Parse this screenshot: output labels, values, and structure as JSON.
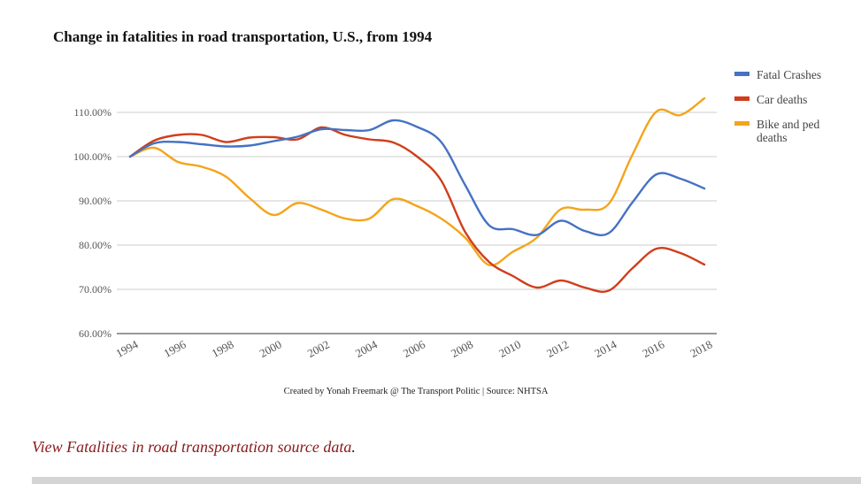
{
  "chart_data": {
    "type": "line",
    "title": "Change in fatalities in road transportation, U.S., from 1994",
    "xlabel": "",
    "ylabel": "",
    "ylim": [
      60,
      115
    ],
    "xlim": [
      1994,
      2018
    ],
    "y_ticks": [
      60,
      70,
      80,
      90,
      100,
      110
    ],
    "y_tick_labels": [
      "60.00%",
      "70.00%",
      "80.00%",
      "90.00%",
      "100.00%",
      "110.00%"
    ],
    "x_tick_labels": [
      "1994",
      "1996",
      "1998",
      "2000",
      "2002",
      "2004",
      "2006",
      "2008",
      "2010",
      "2012",
      "2014",
      "2016",
      "2018"
    ],
    "grid": true,
    "legend_position": "top-right",
    "x": [
      1994,
      1995,
      1996,
      1997,
      1998,
      1999,
      2000,
      2001,
      2002,
      2003,
      2004,
      2005,
      2006,
      2007,
      2008,
      2009,
      2010,
      2011,
      2012,
      2013,
      2014,
      2015,
      2016,
      2017,
      2018
    ],
    "series": [
      {
        "name": "Fatal Crashes",
        "color": "#4472c4",
        "values": [
          100,
          103,
          103.3,
          102.8,
          102.3,
          102.5,
          103.5,
          104.5,
          106.2,
          106.0,
          106.0,
          108.2,
          106.7,
          103.3,
          93.6,
          84.5,
          83.6,
          82.3,
          85.5,
          83.2,
          82.7,
          89.7,
          96.0,
          95.0,
          92.8
        ]
      },
      {
        "name": "Car deaths",
        "color": "#d03e1b",
        "values": [
          100,
          103.6,
          104.9,
          104.9,
          103.3,
          104.3,
          104.4,
          103.9,
          106.6,
          104.9,
          103.9,
          103.2,
          100.0,
          94.6,
          83.0,
          76.2,
          73.0,
          70.4,
          72.0,
          70.4,
          69.7,
          74.8,
          79.2,
          78.2,
          75.6
        ]
      },
      {
        "name": "Bike and ped deaths",
        "color": "#f4a41a",
        "values": [
          100,
          102,
          98.8,
          97.7,
          95.5,
          90.6,
          86.8,
          89.5,
          88.0,
          86.0,
          86.0,
          90.4,
          88.8,
          86.0,
          81.7,
          75.5,
          78.5,
          81.7,
          88.1,
          88.0,
          89.3,
          100.5,
          110.2,
          109.4,
          113.2
        ]
      }
    ]
  },
  "credit": "Created by Yonah Freemark @ The Transport Politic | Source: NHTSA",
  "source_link": {
    "text": "View Fatalities in road transportation source data",
    "suffix": "."
  }
}
